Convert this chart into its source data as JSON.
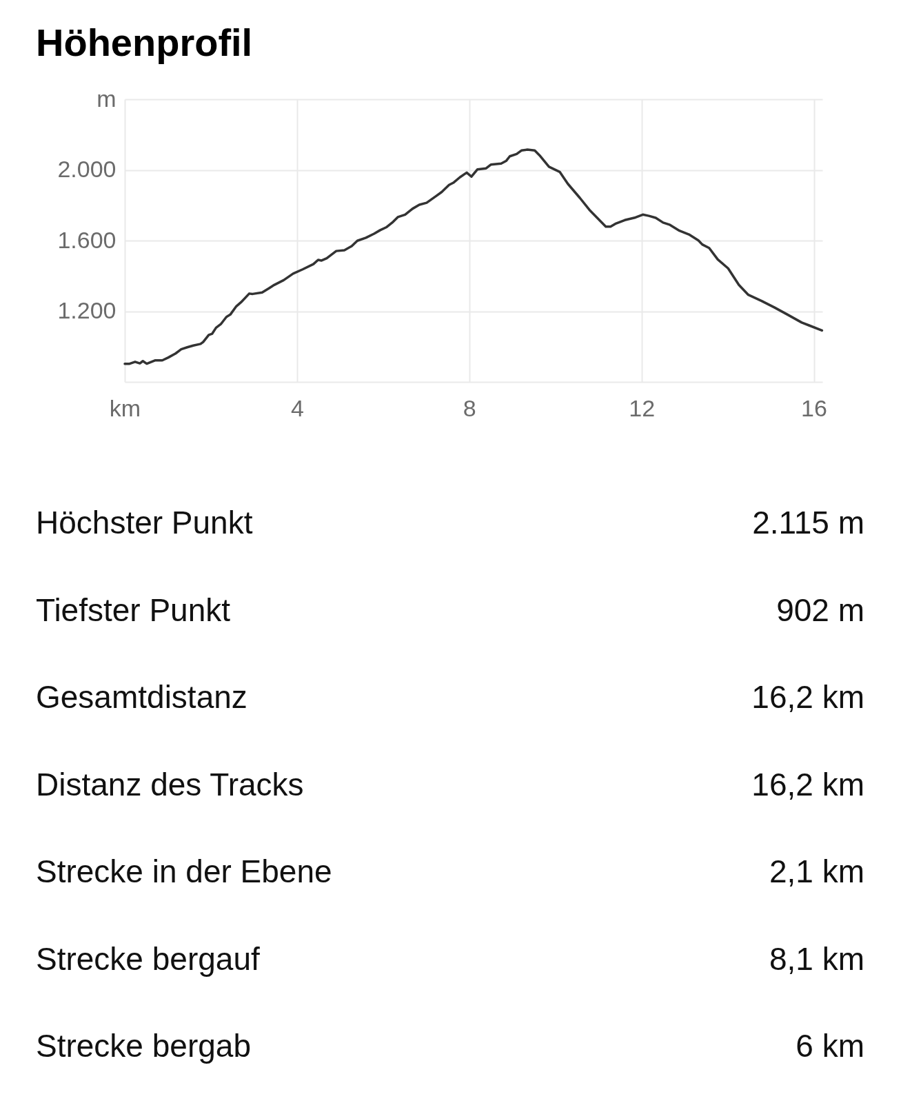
{
  "chart_data": [
    {
      "type": "line",
      "title": "Höhenprofil",
      "x": [
        0,
        0.1,
        0.24,
        0.35,
        0.42,
        0.51,
        0.71,
        0.87,
        1.01,
        1.18,
        1.31,
        1.45,
        1.59,
        1.76,
        1.82,
        1.95,
        2.03,
        2.12,
        2.23,
        2.36,
        2.45,
        2.59,
        2.7,
        2.89,
        2.97,
        3.19,
        3.36,
        3.47,
        3.69,
        3.91,
        4.13,
        4.38,
        4.49,
        4.57,
        4.69,
        4.91,
        5.1,
        5.27,
        5.4,
        5.6,
        5.79,
        5.93,
        6.07,
        6.23,
        6.34,
        6.51,
        6.68,
        6.84,
        7.01,
        7.23,
        7.36,
        7.53,
        7.64,
        7.78,
        7.94,
        8.05,
        8.19,
        8.39,
        8.5,
        8.74,
        8.86,
        8.94,
        9.1,
        9.21,
        9.35,
        9.52,
        9.63,
        9.85,
        10.1,
        10.29,
        10.57,
        10.79,
        11.17,
        11.28,
        11.39,
        11.61,
        11.86,
        12.03,
        12.17,
        12.33,
        12.5,
        12.66,
        12.88,
        13.1,
        13.32,
        13.41,
        13.57,
        13.77,
        14.01,
        14.26,
        14.48,
        14.79,
        15.09,
        15.39,
        15.72,
        15.89,
        16.19
      ],
      "series": [
        {
          "color": "#333333",
          "values": [
            902,
            902,
            914,
            905,
            918,
            903,
            922,
            922,
            938,
            961,
            985,
            996,
            1006,
            1015,
            1026,
            1066,
            1073,
            1107,
            1127,
            1168,
            1181,
            1228,
            1251,
            1300,
            1298,
            1306,
            1332,
            1349,
            1376,
            1413,
            1437,
            1467,
            1491,
            1487,
            1500,
            1541,
            1545,
            1569,
            1599,
            1616,
            1639,
            1659,
            1675,
            1706,
            1733,
            1747,
            1780,
            1803,
            1814,
            1852,
            1875,
            1915,
            1929,
            1958,
            1985,
            1962,
            2003,
            2009,
            2030,
            2036,
            2052,
            2077,
            2090,
            2110,
            2115,
            2110,
            2083,
            2018,
            1989,
            1921,
            1841,
            1774,
            1679,
            1679,
            1695,
            1716,
            1731,
            1747,
            1740,
            1729,
            1702,
            1689,
            1656,
            1635,
            1601,
            1578,
            1558,
            1493,
            1443,
            1349,
            1293,
            1258,
            1221,
            1181,
            1136,
            1120,
            1091
          ]
        }
      ],
      "xlim": [
        0,
        16.2
      ],
      "xticks": [
        {
          "value": 0,
          "label": "km"
        },
        4,
        8,
        12,
        16
      ],
      "ylim": [
        800,
        2400
      ],
      "yticks": [
        {
          "value": 800,
          "label": null
        },
        {
          "value": 1200,
          "label": "1.200"
        },
        {
          "value": 1600,
          "label": "1.600"
        },
        {
          "value": 2000,
          "label": "2.000"
        },
        {
          "value": 2400,
          "label": "m"
        }
      ],
      "grid": true
    },
    {
      "type": "other",
      "annotations": [
        "Höchster Punkt",
        "2.115 m",
        "Tiefster Punkt",
        "902 m",
        "Gesamtdistanz",
        "16,2 km",
        "Distanz des Tracks",
        "16,2 km",
        "Strecke in der Ebene",
        "2,1 km",
        "Strecke bergauf",
        "8,1 km",
        "Strecke bergab",
        "6 km"
      ]
    }
  ]
}
